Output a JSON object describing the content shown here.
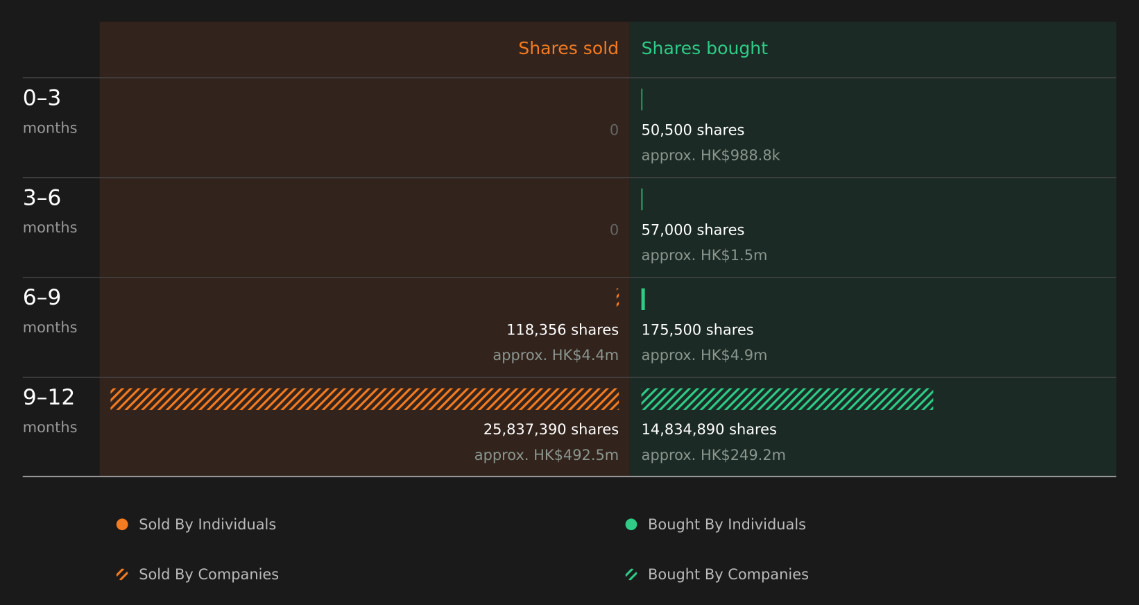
{
  "chart_data": {
    "type": "diverging-bar",
    "categories": [
      "0–3",
      "3–6",
      "6–9",
      "9–12"
    ],
    "category_unit": "months",
    "series": [
      {
        "name": "Shares sold",
        "color": "#f47b20",
        "values": [
          0,
          0,
          118356,
          25837390
        ],
        "value_labels": [
          "0",
          "0",
          "118,356 shares",
          "25,837,390 shares"
        ],
        "amounts": [
          null,
          null,
          4400000,
          492500000
        ],
        "amount_labels": [
          null,
          null,
          "approx. HK$4.4m",
          "approx. HK$492.5m"
        ],
        "hatched": [
          false,
          false,
          true,
          true
        ]
      },
      {
        "name": "Shares bought",
        "color": "#2ecc87",
        "values": [
          50500,
          57000,
          175500,
          14834890
        ],
        "value_labels": [
          "50,500 shares",
          "57,000 shares",
          "175,500 shares",
          "14,834,890 shares"
        ],
        "amounts": [
          988800,
          1500000,
          4900000,
          249200000
        ],
        "amount_labels": [
          "approx. HK$988.8k",
          "approx. HK$1.5m",
          "approx. HK$4.9m",
          "approx. HK$249.2m"
        ],
        "hatched": [
          false,
          false,
          false,
          true
        ]
      }
    ],
    "legend": [
      {
        "label": "Sold By Individuals",
        "color": "#f47b20",
        "hatched": false
      },
      {
        "label": "Sold By Companies",
        "color": "#f47b20",
        "hatched": true
      },
      {
        "label": "Bought By Individuals",
        "color": "#2ecc87",
        "hatched": false
      },
      {
        "label": "Bought By Companies",
        "color": "#2ecc87",
        "hatched": true
      }
    ]
  }
}
